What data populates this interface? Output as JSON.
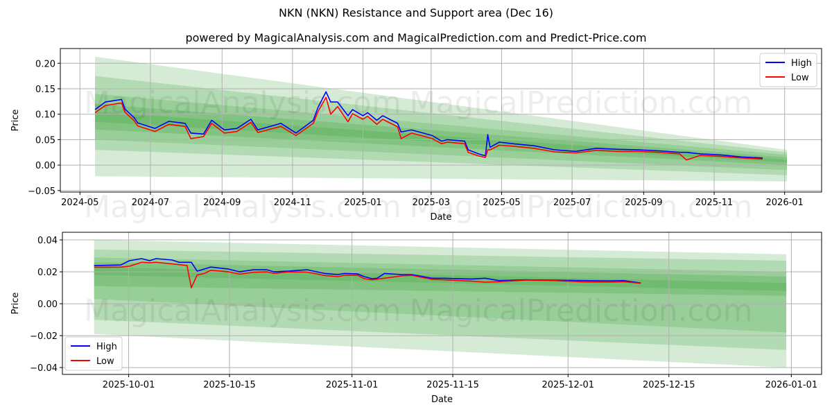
{
  "title": "NKN (NKN) Resistance and Support area (Dec 16)",
  "subtitle": "powered by MagicalAnalysis.com and MagicalPrediction.com and Predict-Price.com",
  "watermarks": [
    "MagicalAnalysis.com",
    "MagicalPrediction.com"
  ],
  "colors": {
    "high": "#0000ff",
    "low": "#ff0000",
    "band": "#2e9a2e",
    "grid": "#b0b0b0"
  },
  "chart_data": [
    {
      "type": "line",
      "x_unit": "days since 2024-05-01",
      "xlabel": "Date",
      "ylabel": "Price",
      "xlim": [
        -17,
        642
      ],
      "ylim": [
        -0.053,
        0.229
      ],
      "grid": true,
      "legend": "top-right",
      "yticks": [
        -0.05,
        0.0,
        0.05,
        0.1,
        0.15,
        0.2
      ],
      "ytick_labels": [
        "−0.05",
        "0.00",
        "0.05",
        "0.10",
        "0.15",
        "0.20"
      ],
      "xticks": [
        0,
        61,
        123,
        184,
        245,
        304,
        365,
        426,
        488,
        549,
        610
      ],
      "xtick_labels": [
        "2024-05",
        "2024-07",
        "2024-09",
        "2024-11",
        "2025-01",
        "2025-03",
        "2025-05",
        "2025-07",
        "2025-09",
        "2025-11",
        "2026-01"
      ],
      "bands_x": [
        13,
        612
      ],
      "bands": [
        {
          "start": [
            -0.022,
            0.213
          ],
          "end": [
            -0.032,
            0.03
          ]
        },
        {
          "start": [
            0.03,
            0.175
          ],
          "end": [
            -0.02,
            0.025
          ]
        },
        {
          "start": [
            0.05,
            0.14
          ],
          "end": [
            -0.01,
            0.02
          ]
        },
        {
          "start": [
            0.07,
            0.12
          ],
          "end": [
            0.0,
            0.015
          ]
        },
        {
          "start": [
            0.085,
            0.105
          ],
          "end": [
            0.005,
            0.01
          ]
        }
      ],
      "series": [
        {
          "name": "High",
          "points": [
            [
              13,
              0.109
            ],
            [
              22,
              0.124
            ],
            [
              36,
              0.129
            ],
            [
              39,
              0.11
            ],
            [
              47,
              0.093
            ],
            [
              50,
              0.083
            ],
            [
              65,
              0.072
            ],
            [
              77,
              0.086
            ],
            [
              91,
              0.082
            ],
            [
              96,
              0.063
            ],
            [
              107,
              0.061
            ],
            [
              114,
              0.088
            ],
            [
              125,
              0.069
            ],
            [
              136,
              0.072
            ],
            [
              148,
              0.09
            ],
            [
              154,
              0.069
            ],
            [
              174,
              0.082
            ],
            [
              187,
              0.063
            ],
            [
              202,
              0.088
            ],
            [
              206,
              0.113
            ],
            [
              213,
              0.144
            ],
            [
              217,
              0.124
            ],
            [
              223,
              0.124
            ],
            [
              232,
              0.097
            ],
            [
              236,
              0.109
            ],
            [
              245,
              0.097
            ],
            [
              249,
              0.103
            ],
            [
              257,
              0.088
            ],
            [
              262,
              0.097
            ],
            [
              275,
              0.082
            ],
            [
              278,
              0.065
            ],
            [
              287,
              0.069
            ],
            [
              305,
              0.058
            ],
            [
              313,
              0.047
            ],
            [
              318,
              0.05
            ],
            [
              333,
              0.047
            ],
            [
              336,
              0.03
            ],
            [
              345,
              0.022
            ],
            [
              351,
              0.018
            ],
            [
              353,
              0.06
            ],
            [
              355,
              0.035
            ],
            [
              363,
              0.045
            ],
            [
              375,
              0.042
            ],
            [
              393,
              0.038
            ],
            [
              411,
              0.03
            ],
            [
              429,
              0.027
            ],
            [
              447,
              0.033
            ],
            [
              465,
              0.031
            ],
            [
              483,
              0.03
            ],
            [
              501,
              0.028
            ],
            [
              519,
              0.025
            ],
            [
              525,
              0.025
            ],
            [
              537,
              0.022
            ],
            [
              555,
              0.02
            ],
            [
              573,
              0.016
            ],
            [
              591,
              0.014
            ]
          ]
        },
        {
          "name": "Low",
          "points": [
            [
              13,
              0.103
            ],
            [
              22,
              0.117
            ],
            [
              36,
              0.122
            ],
            [
              39,
              0.104
            ],
            [
              47,
              0.087
            ],
            [
              50,
              0.077
            ],
            [
              65,
              0.066
            ],
            [
              77,
              0.08
            ],
            [
              91,
              0.076
            ],
            [
              96,
              0.052
            ],
            [
              107,
              0.056
            ],
            [
              114,
              0.082
            ],
            [
              125,
              0.063
            ],
            [
              136,
              0.066
            ],
            [
              148,
              0.084
            ],
            [
              154,
              0.064
            ],
            [
              174,
              0.076
            ],
            [
              187,
              0.058
            ],
            [
              202,
              0.082
            ],
            [
              206,
              0.105
            ],
            [
              213,
              0.133
            ],
            [
              217,
              0.1
            ],
            [
              223,
              0.115
            ],
            [
              232,
              0.085
            ],
            [
              236,
              0.101
            ],
            [
              245,
              0.09
            ],
            [
              249,
              0.096
            ],
            [
              257,
              0.08
            ],
            [
              262,
              0.09
            ],
            [
              275,
              0.075
            ],
            [
              278,
              0.052
            ],
            [
              287,
              0.063
            ],
            [
              305,
              0.052
            ],
            [
              313,
              0.042
            ],
            [
              318,
              0.045
            ],
            [
              333,
              0.042
            ],
            [
              336,
              0.025
            ],
            [
              345,
              0.018
            ],
            [
              351,
              0.015
            ],
            [
              353,
              0.03
            ],
            [
              355,
              0.03
            ],
            [
              363,
              0.039
            ],
            [
              375,
              0.037
            ],
            [
              393,
              0.033
            ],
            [
              411,
              0.026
            ],
            [
              429,
              0.024
            ],
            [
              447,
              0.029
            ],
            [
              465,
              0.027
            ],
            [
              483,
              0.027
            ],
            [
              501,
              0.025
            ],
            [
              519,
              0.022
            ],
            [
              525,
              0.01
            ],
            [
              537,
              0.019
            ],
            [
              555,
              0.017
            ],
            [
              573,
              0.014
            ],
            [
              591,
              0.012
            ]
          ]
        }
      ]
    },
    {
      "type": "line",
      "x_unit": "days since 2025-10-01",
      "xlabel": "Date",
      "ylabel": "Price",
      "xlim": [
        -9.2,
        96.2
      ],
      "ylim": [
        -0.0443,
        0.0448
      ],
      "grid": true,
      "legend": "bottom-left",
      "yticks": [
        -0.04,
        -0.02,
        0.0,
        0.02,
        0.04
      ],
      "ytick_labels": [
        "−0.04",
        "−0.02",
        "0.00",
        "0.02",
        "0.04"
      ],
      "xticks": [
        0,
        14,
        31,
        45,
        61,
        75,
        92
      ],
      "xtick_labels": [
        "2025-10-01",
        "2025-10-15",
        "2025-11-01",
        "2025-11-15",
        "2025-12-01",
        "2025-12-15",
        "2026-01-01"
      ],
      "bands_x": [
        -4.8,
        91.3
      ],
      "bands": [
        {
          "start": [
            -0.019,
            0.04
          ],
          "end": [
            -0.04,
            0.031
          ]
        },
        {
          "start": [
            -0.01,
            0.034
          ],
          "end": [
            -0.029,
            0.027
          ]
        },
        {
          "start": [
            0.003,
            0.029
          ],
          "end": [
            -0.018,
            0.02
          ]
        },
        {
          "start": [
            0.011,
            0.026
          ],
          "end": [
            0.005,
            0.017
          ]
        },
        {
          "start": [
            0.018,
            0.023
          ],
          "end": [
            0.008,
            0.013
          ]
        }
      ],
      "series": [
        {
          "name": "High",
          "points": [
            [
              -4.8,
              0.0239
            ],
            [
              -1.1,
              0.0243
            ],
            [
              0.1,
              0.027
            ],
            [
              1.8,
              0.0283
            ],
            [
              2.9,
              0.027
            ],
            [
              3.8,
              0.0283
            ],
            [
              6.0,
              0.0274
            ],
            [
              7.0,
              0.026
            ],
            [
              8.7,
              0.026
            ],
            [
              9.5,
              0.0204
            ],
            [
              11.4,
              0.023
            ],
            [
              13.9,
              0.0217
            ],
            [
              15.4,
              0.02
            ],
            [
              17.3,
              0.0213
            ],
            [
              19.2,
              0.0213
            ],
            [
              20.2,
              0.02
            ],
            [
              22.1,
              0.0204
            ],
            [
              24.8,
              0.0213
            ],
            [
              27.2,
              0.019
            ],
            [
              29.0,
              0.0183
            ],
            [
              30.0,
              0.019
            ],
            [
              31.8,
              0.0187
            ],
            [
              32.7,
              0.017
            ],
            [
              33.8,
              0.0157
            ],
            [
              34.5,
              0.016
            ],
            [
              35.5,
              0.019
            ],
            [
              37.9,
              0.0183
            ],
            [
              39.3,
              0.0183
            ],
            [
              42.1,
              0.016
            ],
            [
              43.7,
              0.016
            ],
            [
              47.5,
              0.0155
            ],
            [
              49.5,
              0.016
            ],
            [
              51.4,
              0.0145
            ],
            [
              55.2,
              0.015
            ],
            [
              59.1,
              0.0148
            ],
            [
              62.9,
              0.0145
            ],
            [
              66.8,
              0.0143
            ],
            [
              68.7,
              0.0145
            ],
            [
              71.1,
              0.013
            ]
          ]
        },
        {
          "name": "Low",
          "points": [
            [
              -4.8,
              0.0229
            ],
            [
              -1.1,
              0.023
            ],
            [
              0.1,
              0.0235
            ],
            [
              1.8,
              0.026
            ],
            [
              2.9,
              0.0257
            ],
            [
              3.8,
              0.026
            ],
            [
              6.0,
              0.025
            ],
            [
              7.0,
              0.0245
            ],
            [
              8.1,
              0.024
            ],
            [
              8.7,
              0.01
            ],
            [
              9.5,
              0.018
            ],
            [
              10.5,
              0.019
            ],
            [
              11.4,
              0.021
            ],
            [
              13.9,
              0.02
            ],
            [
              15.4,
              0.0185
            ],
            [
              17.3,
              0.0197
            ],
            [
              19.2,
              0.02
            ],
            [
              20.2,
              0.019
            ],
            [
              22.1,
              0.02
            ],
            [
              24.8,
              0.0198
            ],
            [
              27.2,
              0.0177
            ],
            [
              29.0,
              0.017
            ],
            [
              30.0,
              0.0178
            ],
            [
              31.8,
              0.0178
            ],
            [
              32.7,
              0.0157
            ],
            [
              33.8,
              0.015
            ],
            [
              35.5,
              0.016
            ],
            [
              37.9,
              0.0175
            ],
            [
              39.3,
              0.0178
            ],
            [
              42.1,
              0.0153
            ],
            [
              43.7,
              0.015
            ],
            [
              47.5,
              0.0142
            ],
            [
              49.5,
              0.0135
            ],
            [
              51.4,
              0.0138
            ],
            [
              55.2,
              0.0148
            ],
            [
              59.1,
              0.0145
            ],
            [
              62.9,
              0.0137
            ],
            [
              66.8,
              0.0135
            ],
            [
              68.7,
              0.0138
            ],
            [
              71.1,
              0.0128
            ]
          ]
        }
      ]
    }
  ]
}
